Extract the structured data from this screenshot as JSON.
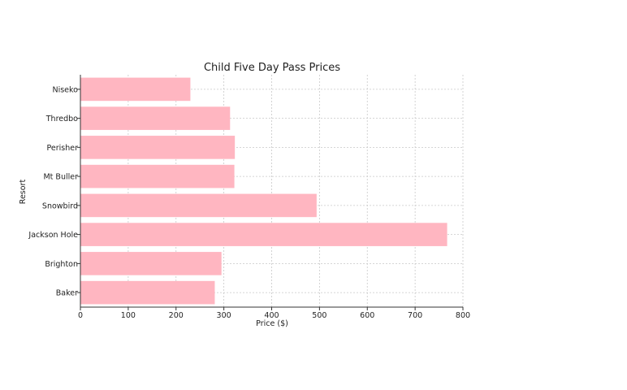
{
  "chart_data": {
    "type": "bar",
    "orientation": "horizontal",
    "title": "Child Five Day Pass Prices",
    "xlabel": "Price ($)",
    "ylabel": "Resort",
    "categories": [
      "Niseko",
      "Thredbo",
      "Perisher",
      "Mt Buller",
      "Snowbird",
      "Jackson Hole",
      "Brighton",
      "Baker"
    ],
    "values": [
      230,
      313,
      323,
      322,
      494,
      767,
      295,
      281
    ],
    "xlim": [
      0,
      800
    ],
    "xticks": [
      0,
      100,
      200,
      300,
      400,
      500,
      600,
      700,
      800
    ],
    "grid": true,
    "bar_color": "#ffb6c1"
  }
}
